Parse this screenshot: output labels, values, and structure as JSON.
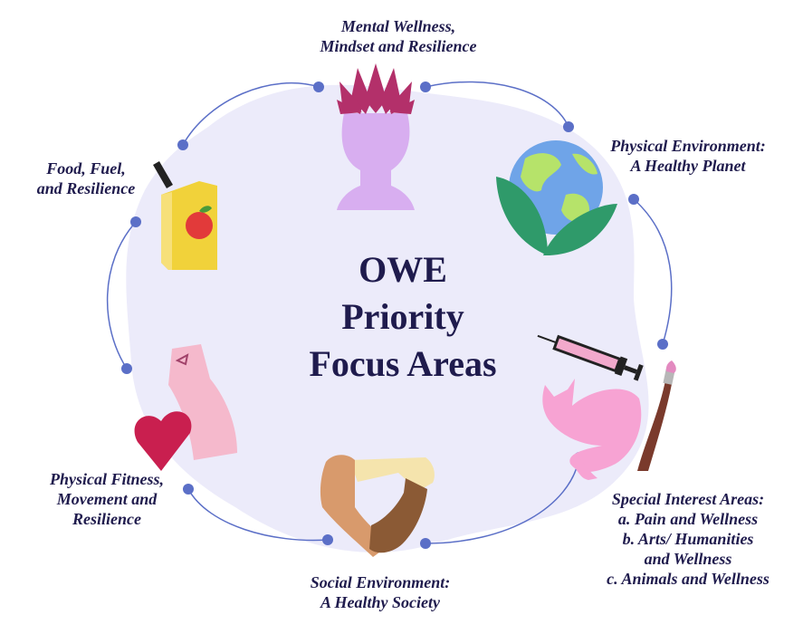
{
  "title": [
    "OWE",
    "Priority",
    "Focus Areas"
  ],
  "areas": {
    "mental": [
      "Mental Wellness,",
      "Mindset and Resilience"
    ],
    "physical_env": [
      "Physical Environment:",
      "A Healthy Planet"
    ],
    "special": [
      "Special Interest Areas:",
      "a. Pain and Wellness",
      "b. Arts/ Humanities",
      "and Wellness",
      "c. Animals and Wellness"
    ],
    "social": [
      "Social Environment:",
      "A Healthy Society"
    ],
    "fitness": [
      "Physical Fitness,",
      "Movement and",
      "Resilience"
    ],
    "food": [
      "Food, Fuel,",
      "and Resilience"
    ]
  },
  "icons": {
    "mental": "lotus-head-icon",
    "physical_env": "earth-leaves-icon",
    "special": "syringe-cat-paintbrush-icon",
    "social": "joined-hands-icon",
    "fitness": "arm-heart-icon",
    "food": "fuel-can-apple-icon"
  },
  "colors": {
    "text": "#1f1b4d",
    "blob": "#ecebfa",
    "connector": "#5b6fc7"
  }
}
